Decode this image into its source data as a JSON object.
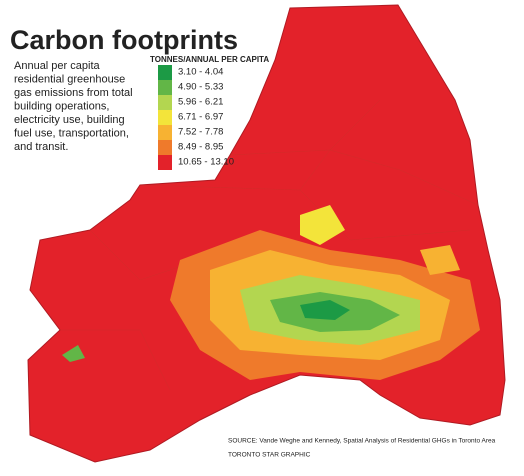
{
  "title": "Carbon footprints",
  "subtitle": [
    "Annual per capita",
    "residential greenhouse",
    "gas emissions from total",
    "building operations,",
    "electricity use, building",
    "fuel use, transportation,",
    "and transit."
  ],
  "legend": {
    "title": "TONNES/ANNUAL PER CAPITA",
    "items": [
      {
        "label": "3.10 - 4.04",
        "color": "#1c9a45"
      },
      {
        "label": "4.90 - 5.33",
        "color": "#62b647"
      },
      {
        "label": "5.96 - 6.21",
        "color": "#b3d650"
      },
      {
        "label": "6.71 - 6.97",
        "color": "#f3e43a"
      },
      {
        "label": "7.52 - 7.78",
        "color": "#f7b232"
      },
      {
        "label": "8.49 - 8.95",
        "color": "#ef7a2b"
      },
      {
        "label": "10.65 - 13.10",
        "color": "#e3222a"
      }
    ]
  },
  "source": "SOURCE: Vande Weghe and Kennedy, Spatial Analysis of Residential GHGs in Toronto Area",
  "credit": "TORONTO STAR GRAPHIC"
}
